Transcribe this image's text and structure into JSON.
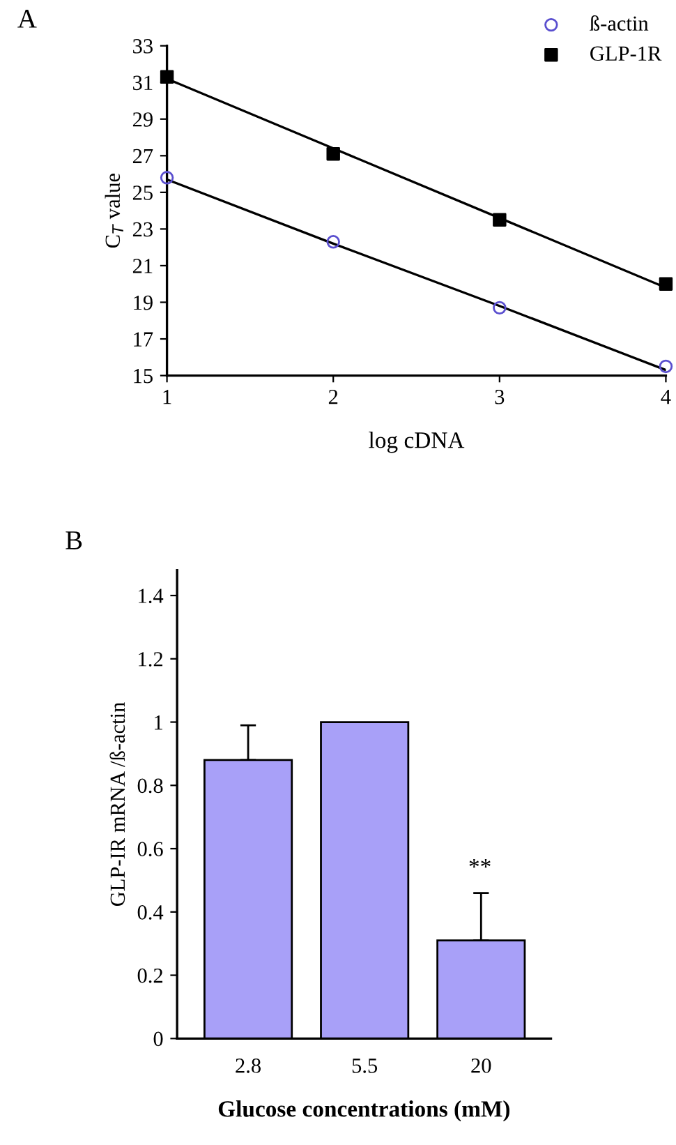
{
  "chart_data": [
    {
      "type": "scatter",
      "title": "A",
      "xlabel": "log cDNA",
      "ylabel": "C$_{T}$ value",
      "x": [
        1,
        2,
        3,
        4
      ],
      "series": [
        {
          "name": "ß-actin",
          "color": "#5a4fcf",
          "marker": "circle",
          "values": [
            25.8,
            22.3,
            18.7,
            15.5
          ]
        },
        {
          "name": "GLP-1R",
          "color": "#000000",
          "marker": "square",
          "values": [
            31.3,
            27.1,
            23.5,
            20.0
          ]
        },
        {
          "type": "line",
          "color": "#000000",
          "values": [
            25.7,
            22.2,
            18.8,
            15.3
          ]
        },
        {
          "type": "line",
          "color": "#000000",
          "values": [
            31.2,
            27.4,
            23.6,
            19.8
          ]
        }
      ],
      "xlim": [
        1,
        4
      ],
      "xticks": [
        1,
        2,
        3,
        4
      ],
      "ylim": [
        15,
        33
      ],
      "yticks": [
        15,
        17,
        19,
        21,
        23,
        25,
        27,
        29,
        31,
        33
      ],
      "legend": "top right",
      "grid": false
    },
    {
      "type": "bar",
      "title": "B",
      "xlabel": "Glucose concentrations (mM)",
      "ylabel": "GLP-IR mRNA /ß-actin",
      "categories": [
        "2.8",
        "5.5",
        "20"
      ],
      "values": [
        0.88,
        1.0,
        0.31
      ],
      "color": "#a8a0f8",
      "errors": [
        [
          0.88,
          0.99
        ],
        null,
        [
          0.31,
          0.46
        ]
      ],
      "ylim": [
        0,
        1.48
      ],
      "yticks": [
        0,
        0.2,
        0.4,
        0.6,
        0.8,
        1,
        1.2,
        1.4
      ],
      "annotations": [
        "**"
      ],
      "grid": false
    }
  ]
}
